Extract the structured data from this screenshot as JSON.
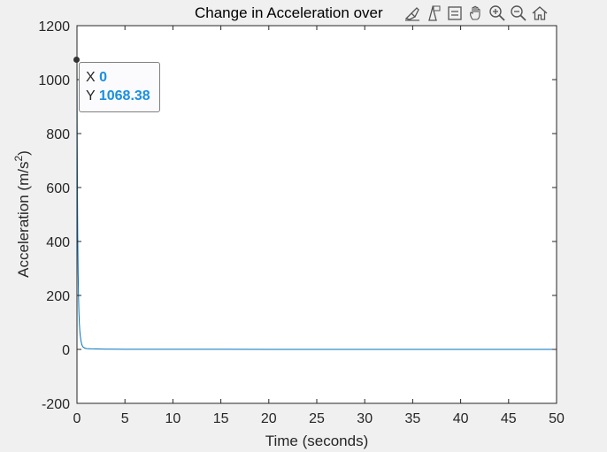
{
  "chart_data": {
    "type": "line",
    "title": "Change in Acceleration over",
    "xlabel": "Time (seconds)",
    "ylabel_main": "Acceleration (m/s",
    "ylabel_sup": "2",
    "ylabel_close": ")",
    "xlim": [
      0,
      50
    ],
    "ylim": [
      -200,
      1200
    ],
    "xticks": [
      "0",
      "5",
      "10",
      "15",
      "20",
      "25",
      "30",
      "35",
      "40",
      "45",
      "50"
    ],
    "yticks": [
      "-200",
      "0",
      "200",
      "400",
      "600",
      "800",
      "1000",
      "1200"
    ],
    "grid": false,
    "series": [
      {
        "color": "#0072bd",
        "x": [
          0,
          0.02,
          0.05,
          0.08,
          0.12,
          0.16,
          0.2,
          0.25,
          0.3,
          0.4,
          0.5,
          0.6,
          0.8,
          1.0,
          1.5,
          2,
          3,
          5,
          10,
          20,
          30,
          40,
          50
        ],
        "y": [
          1068.38,
          850,
          600,
          420,
          290,
          200,
          140,
          95,
          65,
          35,
          18,
          10,
          5,
          3,
          2,
          1.5,
          1,
          0.5,
          0.3,
          0.2,
          0.1,
          0.1,
          0.1
        ]
      }
    ]
  },
  "datatip": {
    "x_label": "X",
    "x_value": "0",
    "y_label": "Y",
    "y_value": "1068.38"
  },
  "toolbar": {
    "icons": [
      "brush-icon",
      "data-tips-icon",
      "legend-icon",
      "pan-icon",
      "zoom-in-icon",
      "zoom-out-icon",
      "home-icon"
    ]
  }
}
